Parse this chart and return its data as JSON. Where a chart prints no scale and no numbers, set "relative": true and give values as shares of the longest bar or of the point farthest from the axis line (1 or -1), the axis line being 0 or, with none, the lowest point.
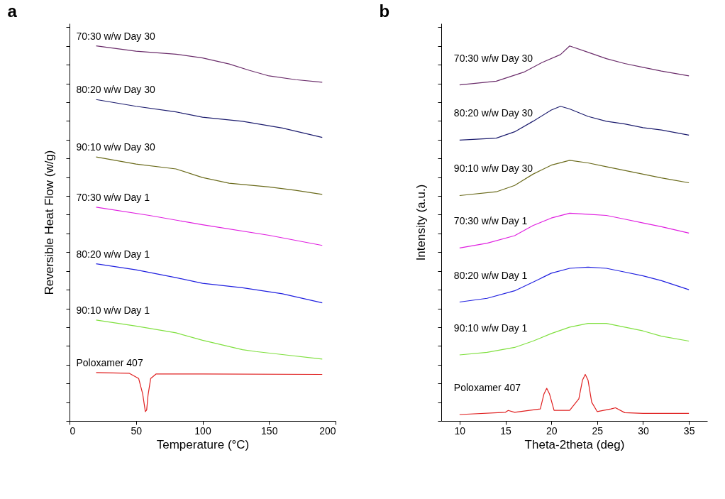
{
  "chart_data": [
    {
      "type": "line",
      "title": "a",
      "xlabel": "Temperature (°C)",
      "ylabel": "Reversible Heat Flow (w/g)",
      "relative": true,
      "legend": false,
      "xlim": [
        0,
        200
      ],
      "xticks": [
        0,
        50,
        100,
        150,
        200
      ],
      "series": [
        {
          "name": "70:30 w/w Day 30",
          "color": "#6b2d6b",
          "x": [
            20,
            50,
            80,
            100,
            120,
            135,
            150,
            170,
            190
          ],
          "values": [
            1.0,
            0.986,
            0.978,
            0.968,
            0.952,
            0.935,
            0.92,
            0.91,
            0.903
          ]
        },
        {
          "name": "80:20 w/w Day 30",
          "color": "#1c1c6e",
          "x": [
            20,
            50,
            80,
            100,
            130,
            160,
            190
          ],
          "values": [
            0.857,
            0.839,
            0.824,
            0.81,
            0.799,
            0.781,
            0.756
          ]
        },
        {
          "name": "90:10 w/w Day 30",
          "color": "#6b6b1c",
          "x": [
            20,
            50,
            80,
            100,
            120,
            150,
            170,
            190
          ],
          "values": [
            0.704,
            0.685,
            0.672,
            0.649,
            0.634,
            0.624,
            0.615,
            0.604
          ]
        },
        {
          "name": "70:30 w/w Day 1",
          "color": "#e020e0",
          "x": [
            20,
            60,
            100,
            150,
            190
          ],
          "values": [
            0.57,
            0.548,
            0.523,
            0.495,
            0.468
          ]
        },
        {
          "name": "80:20 w/w Day 1",
          "color": "#2020e0",
          "x": [
            20,
            50,
            80,
            100,
            130,
            160,
            190
          ],
          "values": [
            0.419,
            0.403,
            0.382,
            0.367,
            0.355,
            0.339,
            0.315
          ]
        },
        {
          "name": "90:10 w/w Day 1",
          "color": "#80e040",
          "x": [
            20,
            50,
            80,
            100,
            130,
            140,
            160,
            190
          ],
          "values": [
            0.269,
            0.253,
            0.235,
            0.215,
            0.19,
            0.185,
            0.177,
            0.165
          ]
        },
        {
          "name": "Poloxamer 407",
          "color": "#e02020",
          "x": [
            20,
            45,
            52,
            55,
            57,
            58,
            59,
            61,
            65,
            100,
            190
          ],
          "values": [
            0.129,
            0.127,
            0.113,
            0.072,
            0.025,
            0.029,
            0.068,
            0.113,
            0.125,
            0.125,
            0.124
          ]
        }
      ]
    },
    {
      "type": "line",
      "title": "b",
      "xlabel": "Theta-2theta (deg)",
      "ylabel": "Intensity (a.u.)",
      "relative": true,
      "legend": false,
      "xlim": [
        8,
        37
      ],
      "xticks": [
        10,
        15,
        20,
        25,
        30,
        35
      ],
      "series": [
        {
          "name": "70:30 w/w Day 30",
          "color": "#6b2d6b",
          "x": [
            10,
            14,
            17,
            19,
            21,
            22,
            24,
            26,
            28,
            30,
            32,
            35
          ],
          "values": [
            0.896,
            0.906,
            0.93,
            0.956,
            0.977,
            1.0,
            0.983,
            0.966,
            0.953,
            0.943,
            0.933,
            0.92
          ]
        },
        {
          "name": "80:20 w/w Day 30",
          "color": "#1c1c6e",
          "x": [
            10,
            14,
            16,
            18,
            20,
            21,
            22,
            24,
            26,
            28,
            30,
            32,
            35
          ],
          "values": [
            0.749,
            0.754,
            0.771,
            0.799,
            0.829,
            0.839,
            0.832,
            0.812,
            0.799,
            0.792,
            0.782,
            0.776,
            0.762
          ]
        },
        {
          "name": "90:10 w/w Day 30",
          "color": "#6b6b1c",
          "x": [
            10,
            14,
            16,
            18,
            20,
            22,
            24,
            26,
            28,
            30,
            32,
            35
          ],
          "values": [
            0.601,
            0.611,
            0.628,
            0.658,
            0.682,
            0.695,
            0.688,
            0.678,
            0.668,
            0.658,
            0.648,
            0.635
          ]
        },
        {
          "name": "70:30 w/w Day 1",
          "color": "#e020e0",
          "x": [
            10,
            13,
            16,
            18,
            20,
            22,
            24,
            26,
            28,
            30,
            32,
            35
          ],
          "values": [
            0.461,
            0.474,
            0.494,
            0.521,
            0.541,
            0.554,
            0.551,
            0.548,
            0.538,
            0.528,
            0.518,
            0.501
          ]
        },
        {
          "name": "80:20 w/w Day 1",
          "color": "#2020e0",
          "x": [
            10,
            13,
            16,
            18,
            20,
            22,
            24,
            26,
            28,
            30,
            32,
            35
          ],
          "values": [
            0.317,
            0.327,
            0.347,
            0.37,
            0.394,
            0.407,
            0.41,
            0.407,
            0.397,
            0.387,
            0.374,
            0.35
          ]
        },
        {
          "name": "90:10 w/w Day 1",
          "color": "#80e040",
          "x": [
            10,
            13,
            16,
            18,
            20,
            22,
            24,
            26,
            28,
            30,
            32,
            35
          ],
          "values": [
            0.176,
            0.183,
            0.196,
            0.213,
            0.233,
            0.25,
            0.26,
            0.26,
            0.25,
            0.24,
            0.226,
            0.213
          ]
        },
        {
          "name": "Poloxamer 407",
          "color": "#e02020",
          "x": [
            10,
            15,
            15.3,
            16,
            18.8,
            19.2,
            19.5,
            19.8,
            20.3,
            22,
            23,
            23.4,
            23.7,
            24,
            24.4,
            25,
            26.5,
            27,
            28,
            30,
            35
          ],
          "values": [
            0.017,
            0.023,
            0.028,
            0.023,
            0.032,
            0.072,
            0.087,
            0.072,
            0.028,
            0.028,
            0.059,
            0.109,
            0.124,
            0.109,
            0.05,
            0.025,
            0.032,
            0.035,
            0.022,
            0.02,
            0.02
          ]
        }
      ]
    }
  ]
}
